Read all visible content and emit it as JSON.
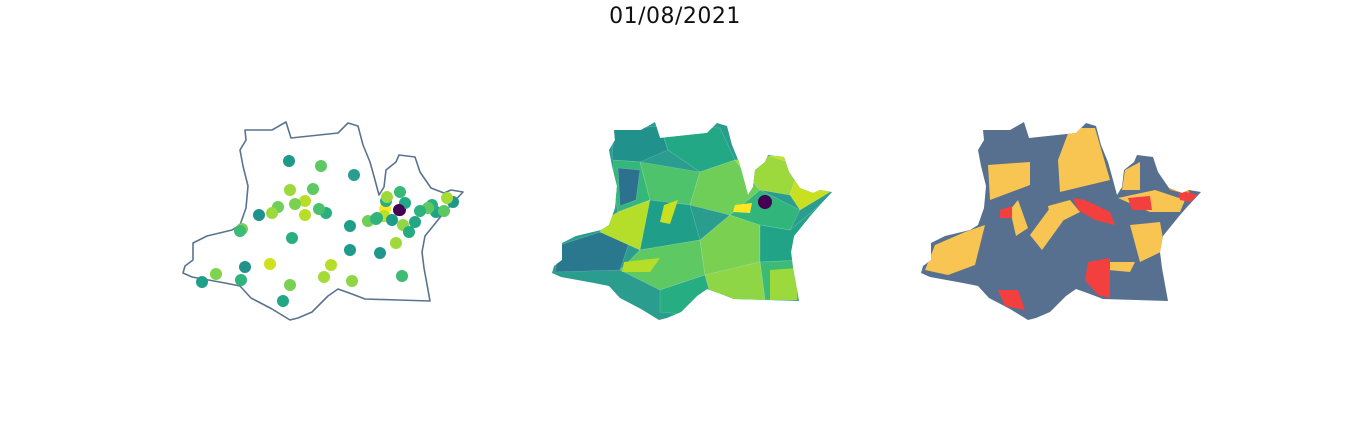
{
  "figure": {
    "title": "01/08/2021"
  },
  "maps": [
    {
      "id": "points",
      "style": "outline-with-circle-markers",
      "outline_color": "#5a7390"
    },
    {
      "id": "choropleth",
      "style": "viridis-choropleth"
    },
    {
      "id": "categorical",
      "style": "categorical-choropleth",
      "palette": {
        "base": "#57708f",
        "yellow": "#f8c552",
        "red": "#f43f3f",
        "orange": "#f89a1c"
      }
    }
  ],
  "markers": [
    {
      "c": "#1f9a8a"
    },
    {
      "c": "#5ec962"
    },
    {
      "c": "#2a9d8f"
    },
    {
      "c": "#9bd93c"
    },
    {
      "c": "#5ec962"
    },
    {
      "c": "#b9de28"
    },
    {
      "c": "#7ad151"
    },
    {
      "c": "#6ece58"
    },
    {
      "c": "#9bd93c"
    },
    {
      "c": "#29af7f"
    },
    {
      "c": "#b8de29"
    },
    {
      "c": "#21918c"
    },
    {
      "c": "#4ac16d"
    },
    {
      "c": "#7ad151"
    },
    {
      "c": "#3bbb75"
    },
    {
      "c": "#29af7f"
    },
    {
      "c": "#1f9e89"
    },
    {
      "c": "#440154"
    },
    {
      "c": "#fde725"
    },
    {
      "c": "#22a884"
    },
    {
      "c": "#38b977"
    },
    {
      "c": "#26ad81"
    },
    {
      "c": "#20a386"
    },
    {
      "c": "#2ab07f"
    },
    {
      "c": "#8fd744"
    },
    {
      "c": "#6ece58"
    },
    {
      "c": "#35b779"
    },
    {
      "c": "#9fda3a"
    },
    {
      "c": "#25ab82"
    },
    {
      "c": "#1f988b"
    },
    {
      "c": "#1e9b8a"
    },
    {
      "c": "#b5de2b"
    },
    {
      "c": "#a2da37"
    },
    {
      "c": "#8ed645"
    },
    {
      "c": "#3ebc73"
    },
    {
      "c": "#22a785"
    },
    {
      "c": "#7ad151"
    },
    {
      "c": "#21918c"
    },
    {
      "c": "#2fb47c"
    },
    {
      "c": "#cde11d"
    },
    {
      "c": "#7fd34e"
    },
    {
      "c": "#1f9e89"
    },
    {
      "c": "#5ec962"
    },
    {
      "c": "#2db27d"
    },
    {
      "c": "#bddf26"
    },
    {
      "c": "#1f968b"
    },
    {
      "c": "#5cc863"
    },
    {
      "c": "#a5db36"
    },
    {
      "c": "#22a785"
    },
    {
      "c": "#1e9c89"
    },
    {
      "c": "#2eb37c"
    },
    {
      "c": "#9bd93c"
    }
  ],
  "regions2": [
    "#21918c",
    "#22a884",
    "#35b779",
    "#4ec36b",
    "#6ece58",
    "#9bd93c",
    "#c8e020",
    "#2a788e",
    "#1f9e89",
    "#5ec962",
    "#26ad81",
    "#7ad151",
    "#31b57b",
    "#20a386",
    "#3bbb75",
    "#8ed645",
    "#b5de2b",
    "#2c728e"
  ]
}
